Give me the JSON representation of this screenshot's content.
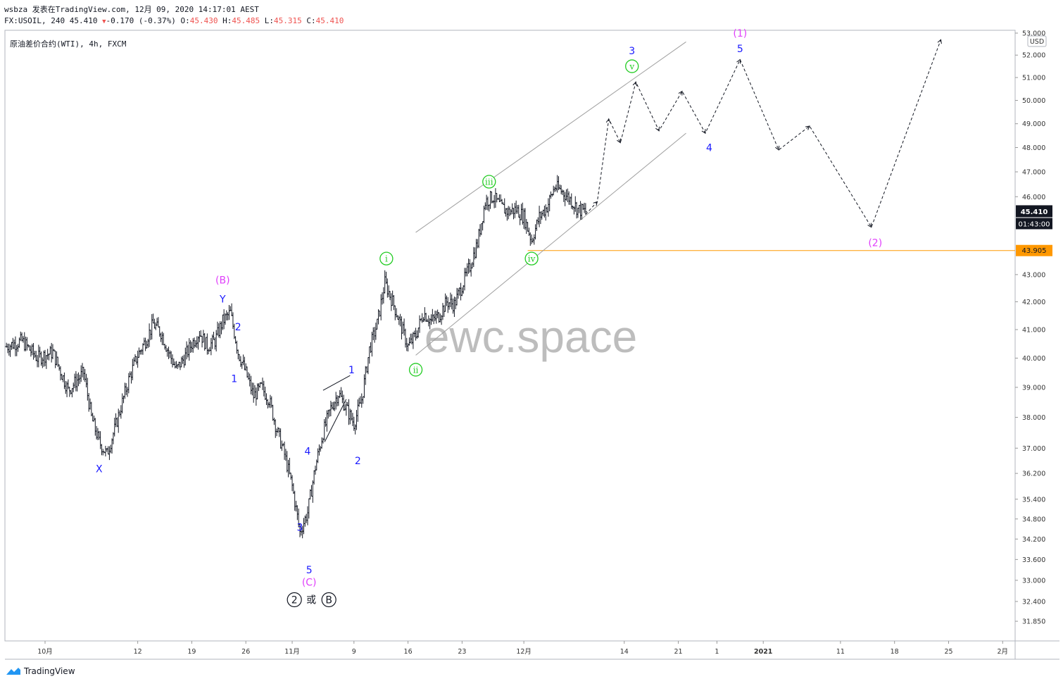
{
  "header": {
    "line1": "wsbza 发表在TradingView.com, 12月 09, 2020 14:17:01 AEST",
    "symbol": "FX:USOIL, 240",
    "last": "45.410",
    "change": "-0.170 (-0.37%)",
    "o_label": "O:",
    "o": "45.430",
    "h_label": "H:",
    "h": "45.485",
    "l_label": "L:",
    "l": "45.315",
    "c_label": "C:",
    "c": "45.410"
  },
  "legend": "原油差价合约(WTI), 4h, FXCM",
  "watermark": "ewc.space",
  "brand": "TradingView",
  "currency": "USD",
  "price_tag": {
    "value": "45.410",
    "countdown": "01:43:00",
    "price": 45.41
  },
  "level_tag": {
    "value": "43.905",
    "price": 43.905
  },
  "colors": {
    "level": "#ff9800",
    "tag_bg": "#131722",
    "magenta": "#e040fb",
    "blue": "#1a1aff",
    "green": "#22cc22"
  },
  "chart_data": {
    "type": "bar",
    "title": "原油差价合约(WTI), 4h, FXCM",
    "y_scale": "log",
    "ylim": [
      31.6,
      53.0
    ],
    "y_ticks": [
      "53.000",
      "52.000",
      "51.000",
      "50.000",
      "49.000",
      "48.000",
      "47.000",
      "46.000",
      "43.000",
      "42.000",
      "41.000",
      "40.000",
      "39.000",
      "38.000",
      "37.000",
      "36.200",
      "35.400",
      "34.800",
      "34.200",
      "33.600",
      "33.000",
      "32.400",
      "31.850"
    ],
    "x_ticks": [
      {
        "label": "10月",
        "day": -1
      },
      {
        "label": "12",
        "day": 11
      },
      {
        "label": "19",
        "day": 18
      },
      {
        "label": "26",
        "day": 25
      },
      {
        "label": "11月",
        "day": 31
      },
      {
        "label": "9",
        "day": 39
      },
      {
        "label": "16",
        "day": 46
      },
      {
        "label": "23",
        "day": 53
      },
      {
        "label": "12月",
        "day": 61
      },
      {
        "label": "14",
        "day": 74
      },
      {
        "label": "21",
        "day": 81
      },
      {
        "label": "1",
        "day": 86
      },
      {
        "label": "2021",
        "day": 92
      },
      {
        "label": "11",
        "day": 102
      },
      {
        "label": "18",
        "day": 109
      },
      {
        "label": "25",
        "day": 116
      },
      {
        "label": "2月",
        "day": 123
      }
    ],
    "price_path": [
      [
        -6,
        40.4
      ],
      [
        -4,
        40.6
      ],
      [
        -2,
        40.0
      ],
      [
        0,
        40.2
      ],
      [
        2,
        38.9
      ],
      [
        4,
        39.5
      ],
      [
        5,
        38.0
      ],
      [
        6,
        37.2
      ],
      [
        7,
        36.8
      ],
      [
        8,
        37.6
      ],
      [
        9,
        38.5
      ],
      [
        10,
        39.4
      ],
      [
        11,
        40.1
      ],
      [
        12,
        40.6
      ],
      [
        13,
        41.2
      ],
      [
        14,
        40.9
      ],
      [
        15,
        40.2
      ],
      [
        16,
        39.6
      ],
      [
        17,
        40.0
      ],
      [
        18,
        40.5
      ],
      [
        19,
        40.9
      ],
      [
        20,
        40.4
      ],
      [
        21,
        40.6
      ],
      [
        22,
        41.3
      ],
      [
        23,
        41.6
      ],
      [
        24,
        40.2
      ],
      [
        25,
        39.5
      ],
      [
        26,
        38.7
      ],
      [
        27,
        39.0
      ],
      [
        28,
        38.6
      ],
      [
        29,
        37.6
      ],
      [
        30,
        36.8
      ],
      [
        31,
        35.8
      ],
      [
        32,
        34.4
      ],
      [
        33,
        35.0
      ],
      [
        34,
        36.4
      ],
      [
        35,
        37.5
      ],
      [
        36,
        38.3
      ],
      [
        37,
        38.8
      ],
      [
        38,
        38.3
      ],
      [
        39,
        37.8
      ],
      [
        40,
        38.6
      ],
      [
        41,
        40.3
      ],
      [
        42,
        41.2
      ],
      [
        43,
        42.7
      ],
      [
        44,
        42.0
      ],
      [
        45,
        41.2
      ],
      [
        46,
        40.4
      ],
      [
        47,
        40.8
      ],
      [
        48,
        41.6
      ],
      [
        49,
        41.3
      ],
      [
        50,
        41.5
      ],
      [
        51,
        42.0
      ],
      [
        52,
        41.9
      ],
      [
        53,
        42.6
      ],
      [
        54,
        43.3
      ],
      [
        55,
        44.2
      ],
      [
        56,
        45.8
      ],
      [
        57,
        46.0
      ],
      [
        58,
        45.6
      ],
      [
        59,
        45.4
      ],
      [
        60,
        45.5
      ],
      [
        61,
        45.2
      ],
      [
        62,
        44.3
      ],
      [
        63,
        45.2
      ],
      [
        64,
        45.6
      ],
      [
        65,
        46.4
      ],
      [
        66,
        46.2
      ],
      [
        67,
        45.9
      ],
      [
        68,
        45.5
      ],
      [
        69,
        45.41
      ]
    ],
    "projection": [
      [
        69,
        45.3
      ],
      [
        70.5,
        45.8
      ],
      [
        72,
        49.2
      ],
      [
        73.5,
        48.2
      ],
      [
        75.5,
        50.8
      ],
      [
        78.5,
        48.7
      ],
      [
        81.5,
        50.4
      ],
      [
        84.5,
        48.6
      ],
      [
        89,
        51.8
      ],
      [
        94,
        47.9
      ],
      [
        98,
        48.9
      ],
      [
        106,
        44.8
      ],
      [
        115,
        52.7
      ]
    ],
    "channel": [
      {
        "from": [
          47,
          44.6
        ],
        "to": [
          82,
          52.6
        ]
      },
      {
        "from": [
          47,
          40.1
        ],
        "to": [
          82,
          48.6
        ]
      }
    ],
    "triangle_lines": [
      {
        "from": [
          35,
          38.9
        ],
        "to": [
          38.5,
          39.4
        ]
      },
      {
        "from": [
          35.2,
          37.2
        ],
        "to": [
          38,
          38.6
        ]
      }
    ],
    "horizontal_level": 43.905,
    "wave_labels": [
      {
        "text": "(B)",
        "day": 22,
        "price": 42.8,
        "style": "magenta"
      },
      {
        "text": "Y",
        "day": 22,
        "price": 42.1,
        "style": "blue"
      },
      {
        "text": "2",
        "day": 24,
        "price": 41.1,
        "style": "blue"
      },
      {
        "text": "1",
        "day": 23.5,
        "price": 39.3,
        "style": "blue"
      },
      {
        "text": "X",
        "day": 6,
        "price": 36.35,
        "style": "blue"
      },
      {
        "text": "4",
        "day": 33,
        "price": 36.9,
        "style": "blue"
      },
      {
        "text": "3",
        "day": 32,
        "price": 34.55,
        "style": "blue"
      },
      {
        "text": "5",
        "day": 33.2,
        "price": 33.3,
        "style": "blue"
      },
      {
        "text": "(C)",
        "day": 33.2,
        "price": 32.95,
        "style": "magenta"
      },
      {
        "text": "1",
        "day": 38.7,
        "price": 39.6,
        "style": "blue"
      },
      {
        "text": "2",
        "day": 39.5,
        "price": 36.6,
        "style": "blue"
      },
      {
        "text": "i",
        "day": 43.2,
        "price": 43.6,
        "style": "green-circle"
      },
      {
        "text": "ii",
        "day": 47,
        "price": 39.6,
        "style": "green-circle"
      },
      {
        "text": "iii",
        "day": 56.5,
        "price": 46.6,
        "style": "green-circle"
      },
      {
        "text": "iv",
        "day": 62,
        "price": 43.6,
        "style": "green-circle"
      },
      {
        "text": "v",
        "day": 75,
        "price": 51.5,
        "style": "green-circle"
      },
      {
        "text": "3",
        "day": 75,
        "price": 52.2,
        "style": "blue"
      },
      {
        "text": "4",
        "day": 85,
        "price": 48.0,
        "style": "blue"
      },
      {
        "text": "(1)",
        "day": 89,
        "price": 53.0,
        "style": "magenta"
      },
      {
        "text": "5",
        "day": 89,
        "price": 52.3,
        "style": "blue"
      },
      {
        "text": "(2)",
        "day": 106.5,
        "price": 44.2,
        "style": "magenta"
      }
    ],
    "degree_note": {
      "a": "2",
      "mid": "或",
      "b": "B",
      "day": 33.2,
      "price": 32.45
    }
  }
}
